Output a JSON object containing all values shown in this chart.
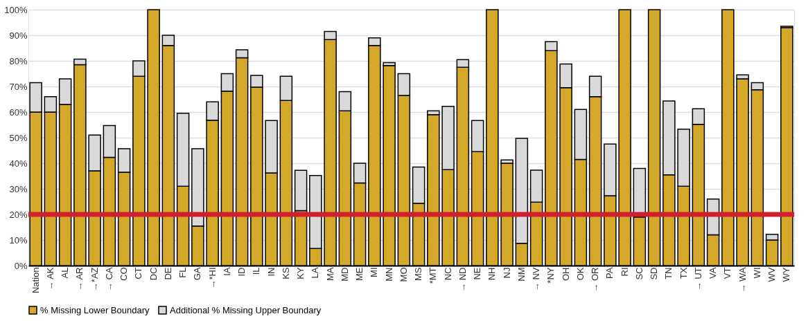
{
  "chart_data": {
    "type": "bar",
    "stacked": true,
    "categories": [
      "Nation",
      "→ AK",
      "AL",
      "→ AR",
      "→*AZ",
      "→ CA",
      "CO",
      "CT",
      "DC",
      "DE",
      "FL",
      "GA",
      "→*HI",
      "IA",
      "ID",
      "IL",
      "IN",
      "KS",
      "KY",
      "LA",
      "MA",
      "MD",
      "ME",
      "MI",
      "MN",
      "MO",
      "MS",
      "*MT",
      "NC",
      "→ ND",
      "NE",
      "NH",
      "NJ",
      "NM",
      "→ NV",
      "*NY",
      "OH",
      "OK",
      "→ OR",
      "PA",
      "RI",
      "SC",
      "SD",
      "TN",
      "TX",
      "→ UT",
      "VA",
      "VT",
      "→ WA",
      "WI",
      "WV",
      "WY"
    ],
    "series": [
      {
        "name": "% Missing Lower Boundary",
        "color": "#d4a828",
        "values": [
          60,
          60,
          63,
          78.5,
          37,
          42.3,
          36.5,
          74,
          100,
          86,
          31,
          15.5,
          56.8,
          68.2,
          81.2,
          69.7,
          36.2,
          64.5,
          21.5,
          6.7,
          88.3,
          60.5,
          32.3,
          86,
          78.2,
          66.5,
          24.3,
          59,
          37.5,
          77.5,
          44.5,
          100,
          40,
          8.7,
          24.8,
          84,
          69.5,
          41.5,
          66,
          27.3,
          100,
          19,
          100,
          35.5,
          31,
          55.2,
          12,
          100,
          73,
          68.7,
          10,
          93
        ]
      },
      {
        "name": "Additional % Missing Upper Boundary",
        "color": "#d9d9d9",
        "values": [
          11.5,
          6,
          10,
          2.2,
          14,
          12.4,
          9.2,
          6,
          null,
          4,
          28.5,
          30.2,
          7.2,
          6.8,
          3.1,
          4.6,
          20.5,
          9.5,
          15.7,
          28.5,
          3.2,
          7.5,
          7.7,
          3,
          1.1,
          8.5,
          14.2,
          1.5,
          24.7,
          3,
          12.2,
          null,
          1.3,
          41,
          12.5,
          3.5,
          9.3,
          19.5,
          8,
          20.2,
          null,
          19,
          null,
          28.8,
          22.3,
          6.1,
          14,
          null,
          1.5,
          2.8,
          2.2,
          0.5
        ]
      }
    ],
    "ylim": [
      0,
      100
    ],
    "yticks": [
      {
        "value": 0,
        "label": "0%"
      },
      {
        "value": 10,
        "label": "10%"
      },
      {
        "value": 20,
        "label": "20%"
      },
      {
        "value": 30,
        "label": "30%"
      },
      {
        "value": 40,
        "label": "40%"
      },
      {
        "value": 50,
        "label": "50%"
      },
      {
        "value": 60,
        "label": "60%"
      },
      {
        "value": 70,
        "label": "70%"
      },
      {
        "value": 80,
        "label": "80%"
      },
      {
        "value": 90,
        "label": "90%"
      },
      {
        "value": 100,
        "label": "100%"
      }
    ],
    "ref_lines": [
      {
        "axis": "y",
        "value": 20,
        "color": "#d0202f"
      }
    ],
    "grid": "y",
    "legend": "bottom"
  }
}
